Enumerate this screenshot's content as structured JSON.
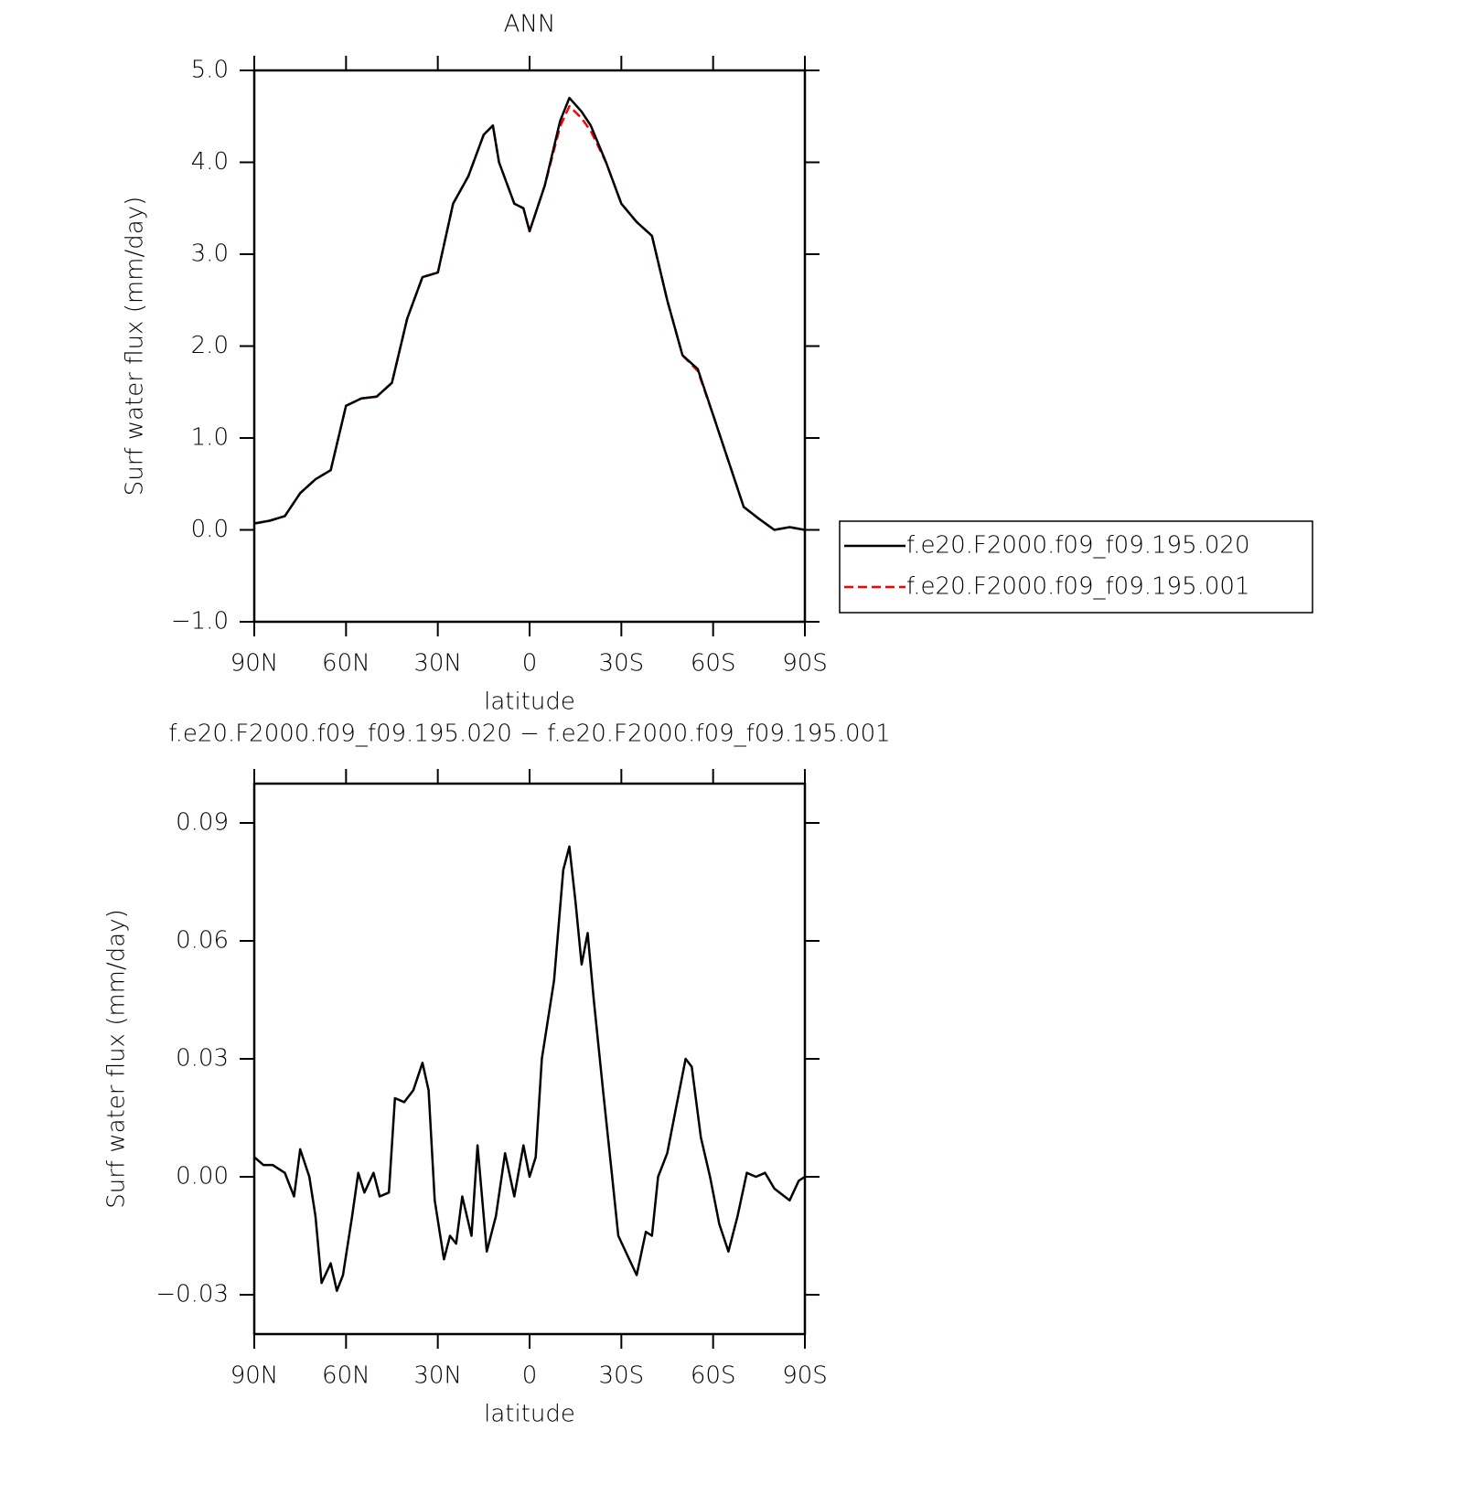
{
  "chart_data": [
    {
      "type": "line",
      "title": "ANN",
      "xlabel": "latitude",
      "ylabel": "Surf water flux (mm/day)",
      "x": [
        90,
        85,
        80,
        75,
        70,
        65,
        60,
        55,
        50,
        45,
        40,
        35,
        30,
        25,
        20,
        15,
        12,
        10,
        5,
        2,
        0,
        -5,
        -10,
        -13,
        -17,
        -20,
        -25,
        -30,
        -35,
        -40,
        -45,
        -50,
        -55,
        -60,
        -65,
        -70,
        -75,
        -80,
        -85,
        -90
      ],
      "series": [
        {
          "name": "f.e20.F2000.f09_f09.195.001",
          "color": "#ff0000",
          "dash": true,
          "values": [
            0.07,
            0.1,
            0.15,
            0.4,
            0.55,
            0.65,
            1.35,
            1.43,
            1.45,
            1.6,
            2.3,
            2.75,
            2.8,
            3.55,
            3.85,
            4.3,
            4.4,
            4.0,
            3.55,
            3.5,
            3.25,
            3.75,
            4.39,
            4.61,
            4.48,
            4.34,
            4.0,
            3.55,
            3.35,
            3.2,
            2.5,
            1.9,
            1.73,
            1.25,
            0.75,
            0.25,
            0.12,
            0.0,
            0.03,
            0.0
          ]
        },
        {
          "name": "f.e20.F2000.f09_f09.195.020",
          "color": "#000000",
          "dash": false,
          "values": [
            0.07,
            0.1,
            0.15,
            0.4,
            0.55,
            0.65,
            1.35,
            1.43,
            1.45,
            1.6,
            2.3,
            2.75,
            2.8,
            3.55,
            3.85,
            4.3,
            4.4,
            4.0,
            3.55,
            3.5,
            3.25,
            3.75,
            4.45,
            4.7,
            4.55,
            4.4,
            4.0,
            3.55,
            3.35,
            3.2,
            2.5,
            1.9,
            1.75,
            1.25,
            0.75,
            0.25,
            0.12,
            0.0,
            0.03,
            0.0
          ]
        }
      ],
      "xlim": [
        90,
        -90
      ],
      "xticks": [
        {
          "value": 90,
          "label": "90N"
        },
        {
          "value": 60,
          "label": "60N"
        },
        {
          "value": 30,
          "label": "30N"
        },
        0,
        {
          "value": -30,
          "label": "30S"
        },
        {
          "value": -60,
          "label": "60S"
        },
        {
          "value": -90,
          "label": "90S"
        }
      ],
      "ylim": [
        -1,
        5
      ],
      "yticks": [
        {
          "value": -1,
          "label": "−1.0"
        },
        {
          "value": 0,
          "label": "0.0"
        },
        {
          "value": 1,
          "label": "1.0"
        },
        {
          "value": 2,
          "label": "2.0"
        },
        {
          "value": 3,
          "label": "3.0"
        },
        {
          "value": 4,
          "label": "4.0"
        },
        {
          "value": 5,
          "label": "5.0"
        }
      ],
      "legend": "right"
    },
    {
      "type": "line",
      "title": "f.e20.F2000.f09_f09.195.020 − f.e20.F2000.f09_f09.195.001",
      "xlabel": "latitude",
      "ylabel": "Surf water flux (mm/day)",
      "x": [
        90,
        87,
        84,
        80,
        77,
        75,
        72,
        70,
        68,
        65,
        63,
        61,
        58,
        56,
        54,
        51,
        49,
        46,
        44,
        41,
        38,
        35,
        33,
        31,
        28,
        26,
        24,
        22,
        19,
        17,
        14,
        11,
        8,
        5,
        2,
        0,
        -2,
        -4,
        -8,
        -11,
        -13,
        -15,
        -17,
        -19,
        -21,
        -24,
        -27,
        -29,
        -32,
        -35,
        -38,
        -40,
        -42,
        -45,
        -48,
        -51,
        -53,
        -56,
        -59,
        -62,
        -65,
        -68,
        -71,
        -74,
        -77,
        -80,
        -85,
        -88,
        -90
      ],
      "series": [
        {
          "color": "#000000",
          "dash": false,
          "values": [
            0.005,
            0.003,
            0.003,
            0.001,
            -0.005,
            0.007,
            0.0,
            -0.01,
            -0.027,
            -0.022,
            -0.029,
            -0.025,
            -0.01,
            0.001,
            -0.004,
            0.001,
            -0.005,
            -0.004,
            0.02,
            0.019,
            0.022,
            0.029,
            0.022,
            -0.006,
            -0.021,
            -0.015,
            -0.017,
            -0.005,
            -0.015,
            0.008,
            -0.019,
            -0.01,
            0.006,
            -0.005,
            0.008,
            0.0,
            0.005,
            0.03,
            0.05,
            0.078,
            0.084,
            0.07,
            0.054,
            0.062,
            0.045,
            0.022,
            0.0,
            -0.015,
            -0.02,
            -0.025,
            -0.014,
            -0.015,
            0.0,
            0.006,
            0.018,
            0.03,
            0.028,
            0.01,
            0.0,
            -0.012,
            -0.019,
            -0.01,
            0.001,
            0.0,
            0.001,
            -0.003,
            -0.006,
            -0.001,
            0.0
          ]
        }
      ],
      "xlim": [
        90,
        -90
      ],
      "xticks": [
        {
          "value": 90,
          "label": "90N"
        },
        {
          "value": 60,
          "label": "60N"
        },
        {
          "value": 30,
          "label": "30N"
        },
        0,
        {
          "value": -30,
          "label": "30S"
        },
        {
          "value": -60,
          "label": "60S"
        },
        {
          "value": -90,
          "label": "90S"
        }
      ],
      "ylim": [
        -0.04,
        0.1
      ],
      "yticks": [
        {
          "value": -0.03,
          "label": "−0.03"
        },
        {
          "value": 0,
          "label": "0.00"
        },
        {
          "value": 0.03,
          "label": "0.03"
        },
        {
          "value": 0.06,
          "label": "0.06"
        },
        {
          "value": 0.09,
          "label": "0.09"
        }
      ]
    }
  ]
}
